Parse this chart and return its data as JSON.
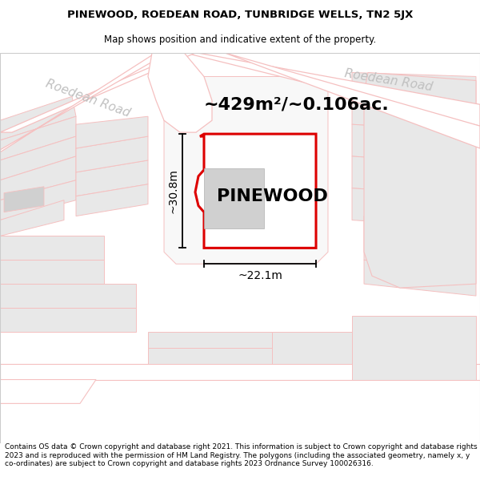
{
  "title_line1": "PINEWOOD, ROEDEAN ROAD, TUNBRIDGE WELLS, TN2 5JX",
  "title_line2": "Map shows position and indicative extent of the property.",
  "area_text": "~429m²/~0.106ac.",
  "property_name": "PINEWOOD",
  "dim_width": "~22.1m",
  "dim_height": "~30.8m",
  "footer_text": "Contains OS data © Crown copyright and database right 2021. This information is subject to Crown copyright and database rights 2023 and is reproduced with the permission of HM Land Registry. The polygons (including the associated geometry, namely x, y co-ordinates) are subject to Crown copyright and database rights 2023 Ordnance Survey 100026316.",
  "bg_color": "#ffffff",
  "map_bg": "#f2f2f2",
  "road_color": "#f5c0c0",
  "road_fill": "#ffffff",
  "plot_fill": "#e8e8e8",
  "property_outline_color": "#dd0000",
  "property_fill": "#ffffff",
  "building_fill": "#d0d0d0",
  "road_label_color": "#c0c0c0",
  "text_color": "#000000",
  "title_fontsize": 9.5,
  "subtitle_fontsize": 8.5,
  "area_fontsize": 16,
  "name_fontsize": 16,
  "dim_fontsize": 10,
  "road_label_fontsize": 11,
  "footer_fontsize": 6.5
}
